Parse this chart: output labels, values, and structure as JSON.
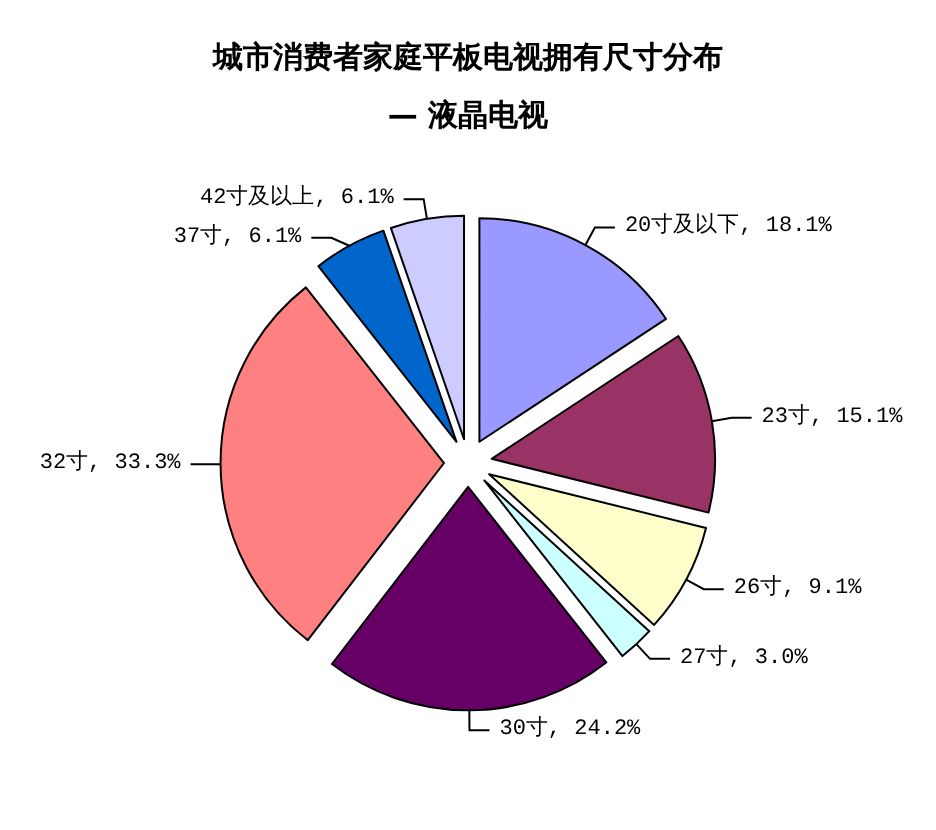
{
  "chart_data": {
    "type": "pie",
    "title": "城市消费者家庭平板电视拥有尺寸分布",
    "subtitle": "— 液晶电视",
    "categories": [
      "20寸及以下",
      "23寸",
      "26寸",
      "27寸",
      "30寸",
      "32寸",
      "37寸",
      "42寸及以上"
    ],
    "values": [
      18.1,
      15.1,
      9.1,
      3.0,
      24.2,
      33.3,
      6.1,
      6.1
    ],
    "value_labels": [
      "18.1%",
      "15.1%",
      "9.1%",
      "3.0%",
      "24.2%",
      "33.3%",
      "6.1%",
      "6.1%"
    ],
    "colors": [
      "#9999ff",
      "#993366",
      "#ffffcc",
      "#ccffff",
      "#660066",
      "#ff8080",
      "#0066cc",
      "#ccccff"
    ],
    "legend": false
  }
}
